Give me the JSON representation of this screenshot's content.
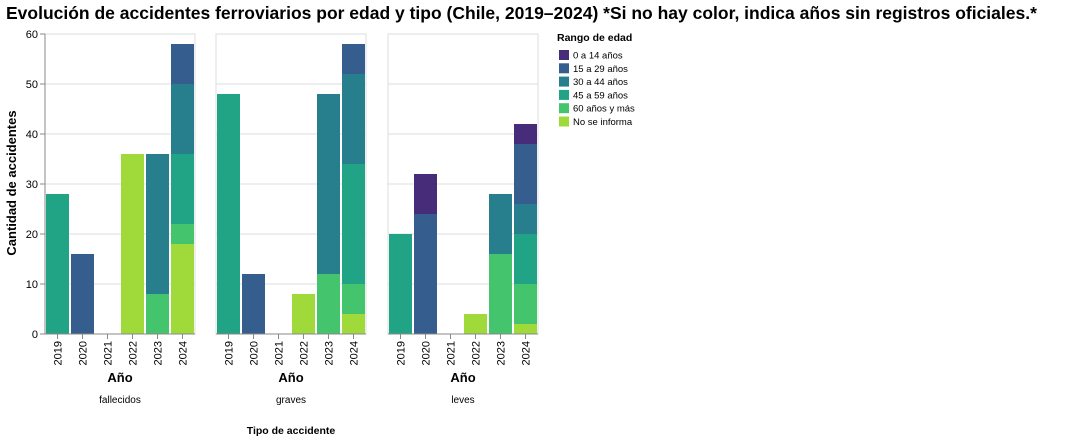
{
  "chart_data": {
    "type": "bar",
    "stacked": true,
    "title": "Evolución de accidentes ferroviarios por edad y tipo (Chile, 2019–2024) *Si no hay color, indica años sin registros oficiales.*",
    "ylabel": "Cantidad de accidentes",
    "xlabel": "Año",
    "column_title": "Tipo de accidente",
    "ylim": [
      0,
      60
    ],
    "yticks": [
      0,
      10,
      20,
      30,
      40,
      50,
      60
    ],
    "grid": true,
    "legend": {
      "title": "Rango de edad",
      "placement": "right",
      "entries": [
        {
          "name": "0 a 14 años",
          "color": "#472c7a"
        },
        {
          "name": "15 a 29 años",
          "color": "#355d8d"
        },
        {
          "name": "30 a 44 años",
          "color": "#277f8e"
        },
        {
          "name": "45 a 59 años",
          "color": "#21a386"
        },
        {
          "name": "60 años y más",
          "color": "#44c46d"
        },
        {
          "name": "No se informa",
          "color": "#a0d93a"
        }
      ]
    },
    "categories": [
      "2019",
      "2020",
      "2021",
      "2022",
      "2023",
      "2024"
    ],
    "facets": [
      {
        "name": "fallecidos",
        "stacks": [
          [
            {
              "series": "45 a 59 años",
              "value": 28
            }
          ],
          [
            {
              "series": "15 a 29 años",
              "value": 16
            }
          ],
          [],
          [
            {
              "series": "No se informa",
              "value": 36
            }
          ],
          [
            {
              "series": "60 años y más",
              "value": 8
            },
            {
              "series": "30 a 44 años",
              "value": 28
            }
          ],
          [
            {
              "series": "No se informa",
              "value": 18
            },
            {
              "series": "60 años y más",
              "value": 4
            },
            {
              "series": "45 a 59 años",
              "value": 14
            },
            {
              "series": "30 a 44 años",
              "value": 14
            },
            {
              "series": "15 a 29 años",
              "value": 8
            }
          ]
        ]
      },
      {
        "name": "graves",
        "stacks": [
          [
            {
              "series": "45 a 59 años",
              "value": 48
            }
          ],
          [
            {
              "series": "15 a 29 años",
              "value": 12
            }
          ],
          [],
          [
            {
              "series": "No se informa",
              "value": 8
            }
          ],
          [
            {
              "series": "60 años y más",
              "value": 12
            },
            {
              "series": "30 a 44 años",
              "value": 36
            }
          ],
          [
            {
              "series": "No se informa",
              "value": 4
            },
            {
              "series": "60 años y más",
              "value": 6
            },
            {
              "series": "45 a 59 años",
              "value": 24
            },
            {
              "series": "30 a 44 años",
              "value": 18
            },
            {
              "series": "15 a 29 años",
              "value": 6
            }
          ]
        ]
      },
      {
        "name": "leves",
        "stacks": [
          [
            {
              "series": "45 a 59 años",
              "value": 20
            }
          ],
          [
            {
              "series": "15 a 29 años",
              "value": 24
            },
            {
              "series": "0 a 14 años",
              "value": 8
            }
          ],
          [],
          [
            {
              "series": "No se informa",
              "value": 4
            }
          ],
          [
            {
              "series": "60 años y más",
              "value": 16
            },
            {
              "series": "30 a 44 años",
              "value": 12
            }
          ],
          [
            {
              "series": "No se informa",
              "value": 2
            },
            {
              "series": "60 años y más",
              "value": 8
            },
            {
              "series": "45 a 59 años",
              "value": 10
            },
            {
              "series": "30 a 44 años",
              "value": 6
            },
            {
              "series": "15 a 29 años",
              "value": 12
            },
            {
              "series": "0 a 14 años",
              "value": 4
            }
          ]
        ]
      }
    ]
  }
}
